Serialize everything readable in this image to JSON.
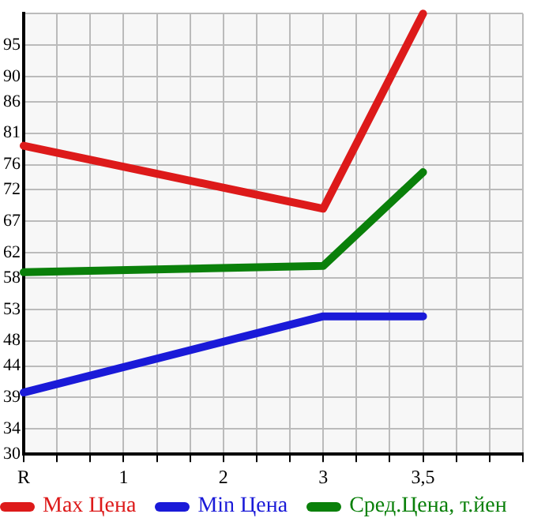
{
  "chart_data": {
    "type": "line",
    "categories": [
      "R",
      null,
      null,
      "1",
      null,
      null,
      "2",
      null,
      null,
      "3",
      null,
      null,
      "3,5",
      null,
      null,
      null
    ],
    "ylim": [
      30,
      100
    ],
    "yticks": [
      30,
      34,
      39,
      44,
      48,
      53,
      58,
      62,
      67,
      72,
      76,
      81,
      86,
      90,
      95,
      {
        "value": 100,
        "label": null
      }
    ],
    "series": [
      {
        "name": "Max Цена",
        "color": "#dd1a1a",
        "x": [
          "R",
          "3",
          "3,5"
        ],
        "values": [
          79,
          69,
          100
        ]
      },
      {
        "name": "Min Цена",
        "color": "#1a1ad8",
        "x": [
          "R",
          "3",
          "3,5"
        ],
        "values": [
          39.8,
          51.9,
          51.9
        ]
      },
      {
        "name": "Сред.Цена, т.йен",
        "color": "#0a800a",
        "x": [
          "R",
          "3",
          "3,5"
        ],
        "values": [
          58.9,
          59.9,
          74.8
        ]
      }
    ],
    "grid": true,
    "legend": "bottom",
    "marker": "none",
    "line_style": "solid"
  }
}
